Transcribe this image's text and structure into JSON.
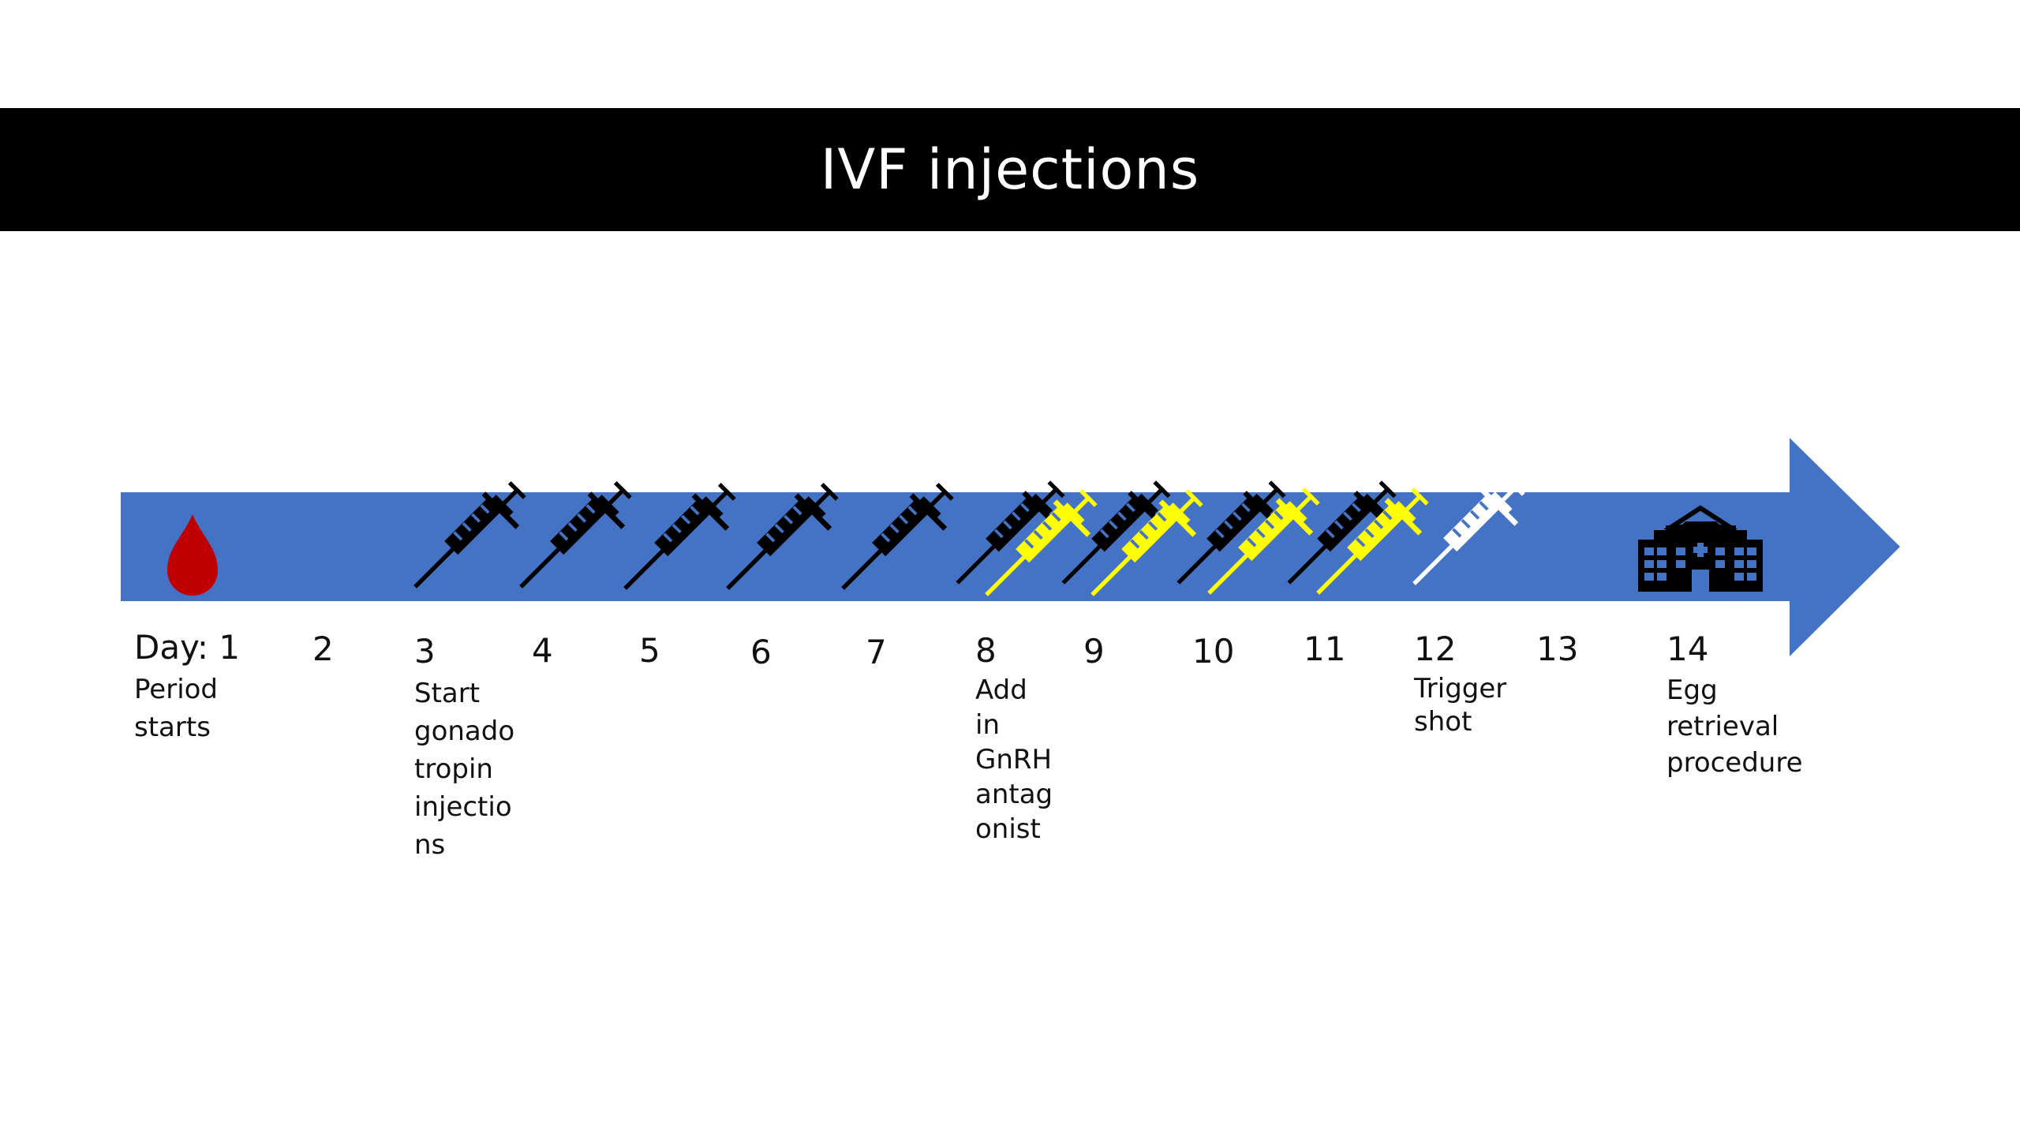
{
  "title": "IVF injections",
  "colors": {
    "title_bar": "#000000",
    "title_text": "#ffffff",
    "arrow": "#4472c4",
    "blood_drop": "#c00000",
    "gonadotropin_syringe": "#000000",
    "antagonist_syringe": "#ffff00",
    "trigger_syringe": "#ffffff",
    "hospital": "#000000"
  },
  "icons": {
    "day1": "blood-drop-icon",
    "day3_to_7": "black-syringe-icon",
    "day8_to_11": "black-and-yellow-syringe-icon",
    "day12": "white-syringe-icon",
    "day14": "hospital-icon"
  },
  "days": {
    "d1": "Day: 1",
    "d2": "2",
    "d3": "3",
    "d4": "4",
    "d5": "5",
    "d6": "6",
    "d7": "7",
    "d8": "8",
    "d9": "9",
    "d10": "10",
    "d11": "11",
    "d12": "12",
    "d13": "13",
    "d14": "14"
  },
  "notes": {
    "d1": "Period\nstarts",
    "d3": "Start\ngonado\ntropin\ninjectio\nns",
    "d8": "Add\nin\nGnRH\nantag\nonist",
    "d12": "Trigger\nshot",
    "d14": "Egg\nretrieval\nprocedure"
  }
}
